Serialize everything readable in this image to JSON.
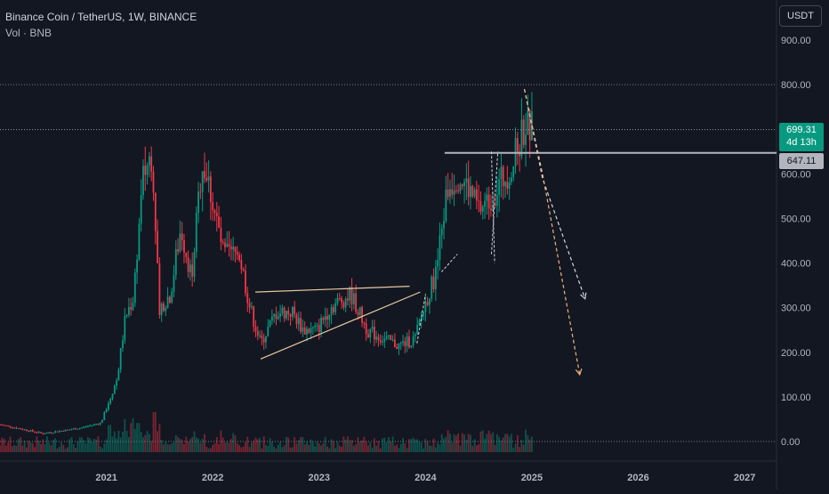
{
  "legend": {
    "symbol_line": "Binance Coin / TetherUS, 1W, BINANCE",
    "volume_label": "Vol · BNB"
  },
  "toolbar": {
    "currency": "USDT"
  },
  "price_tags": {
    "last_price": "699.31",
    "countdown": "4d 13h",
    "level_price": "647.11"
  },
  "colors": {
    "background": "#131722",
    "up": "#089981",
    "down": "#f23645",
    "grid": "#1e222d",
    "level_line": "#b2b5be",
    "trendline": "#e8c9a0",
    "projection_white": "#d1d4dc",
    "projection_orange": "#f0b27a"
  },
  "chart_data": {
    "type": "candlestick",
    "title": "Binance Coin / TetherUS, 1W, BINANCE",
    "ylim": [
      -20,
      920
    ],
    "y_ticks": [
      900,
      800,
      700,
      600,
      500,
      400,
      300,
      200,
      100,
      0
    ],
    "x_tick_labels": [
      "2021",
      "2022",
      "2023",
      "2024",
      "2025",
      "2026",
      "2027"
    ],
    "grid": false,
    "price_points": [
      {
        "t": 2020.0,
        "p": 38
      },
      {
        "t": 2020.4,
        "p": 18
      },
      {
        "t": 2020.75,
        "p": 30
      },
      {
        "t": 2020.95,
        "p": 42
      },
      {
        "t": 2021.1,
        "p": 140
      },
      {
        "t": 2021.18,
        "p": 280
      },
      {
        "t": 2021.25,
        "p": 320
      },
      {
        "t": 2021.35,
        "p": 600
      },
      {
        "t": 2021.43,
        "p": 650
      },
      {
        "t": 2021.5,
        "p": 300
      },
      {
        "t": 2021.6,
        "p": 330
      },
      {
        "t": 2021.7,
        "p": 480
      },
      {
        "t": 2021.8,
        "p": 370
      },
      {
        "t": 2021.9,
        "p": 630
      },
      {
        "t": 2021.98,
        "p": 560
      },
      {
        "t": 2022.1,
        "p": 420
      },
      {
        "t": 2022.25,
        "p": 420
      },
      {
        "t": 2022.35,
        "p": 300
      },
      {
        "t": 2022.45,
        "p": 220
      },
      {
        "t": 2022.6,
        "p": 290
      },
      {
        "t": 2022.75,
        "p": 290
      },
      {
        "t": 2022.85,
        "p": 250
      },
      {
        "t": 2022.98,
        "p": 250
      },
      {
        "t": 2023.1,
        "p": 300
      },
      {
        "t": 2023.3,
        "p": 330
      },
      {
        "t": 2023.45,
        "p": 250
      },
      {
        "t": 2023.6,
        "p": 230
      },
      {
        "t": 2023.75,
        "p": 215
      },
      {
        "t": 2023.9,
        "p": 230
      },
      {
        "t": 2024.0,
        "p": 310
      },
      {
        "t": 2024.1,
        "p": 380
      },
      {
        "t": 2024.2,
        "p": 560
      },
      {
        "t": 2024.3,
        "p": 600
      },
      {
        "t": 2024.4,
        "p": 570
      },
      {
        "t": 2024.5,
        "p": 520
      },
      {
        "t": 2024.6,
        "p": 540
      },
      {
        "t": 2024.7,
        "p": 580
      },
      {
        "t": 2024.82,
        "p": 620
      },
      {
        "t": 2024.93,
        "p": 710
      },
      {
        "t": 2025.0,
        "p": 699
      }
    ],
    "horizontal_levels": [
      {
        "label": "647.11",
        "value": 647.11
      },
      {
        "label": "699.31",
        "value": 699.31
      }
    ],
    "trendlines": [
      {
        "name": "triangle-top",
        "from": {
          "t": 2022.4,
          "p": 335
        },
        "to": {
          "t": 2023.85,
          "p": 348
        }
      },
      {
        "name": "triangle-bottom",
        "from": {
          "t": 2022.45,
          "p": 185
        },
        "to": {
          "t": 2023.95,
          "p": 335
        }
      }
    ],
    "projections": [
      {
        "color": "white",
        "points": [
          {
            "t": 2024.93,
            "p": 790
          },
          {
            "t": 2025.1,
            "p": 590
          },
          {
            "t": 2025.5,
            "p": 320
          }
        ]
      },
      {
        "color": "orange",
        "points": [
          {
            "t": 2024.93,
            "p": 790
          },
          {
            "t": 2025.1,
            "p": 600
          },
          {
            "t": 2025.45,
            "p": 150
          }
        ]
      }
    ]
  }
}
